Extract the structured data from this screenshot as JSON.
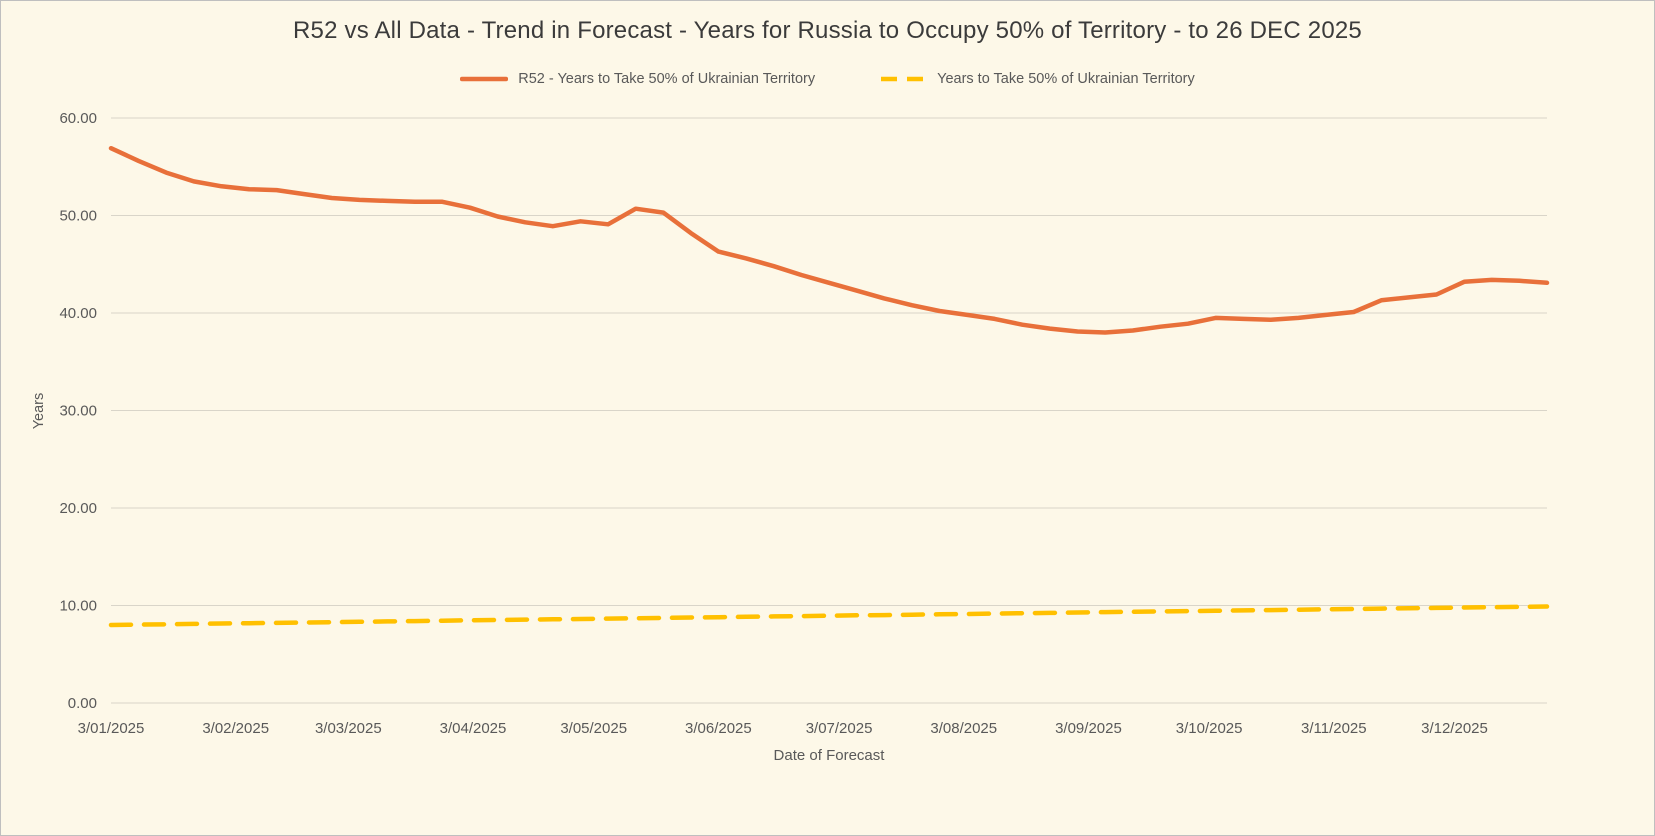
{
  "title": "R52 vs All Data  - Trend in Forecast - Years for Russia to Occupy 50% of Territory - to 26 DEC 2025",
  "colors": {
    "background": "#FDF8E8",
    "grid": "#D9D5C9",
    "axis_text": "#595959",
    "title_text": "#3B3B3B",
    "series_r52": "#E8703A",
    "series_alldata": "#FFC000",
    "border": "#BFBFBF"
  },
  "chart_data": {
    "type": "line",
    "title": "R52 vs All Data  - Trend in Forecast - Years for Russia to Occupy 50% of Territory - to 26 DEC 2025",
    "xlabel": "Date of Forecast",
    "ylabel": "Years",
    "ylim": [
      0,
      60
    ],
    "grid": "horizontal",
    "legend_position": "top",
    "y_ticks": [
      {
        "value": 0,
        "label": "0.00"
      },
      {
        "value": 10,
        "label": "10.00"
      },
      {
        "value": 20,
        "label": "20.00"
      },
      {
        "value": 30,
        "label": "30.00"
      },
      {
        "value": 40,
        "label": "40.00"
      },
      {
        "value": 50,
        "label": "50.00"
      },
      {
        "value": 60,
        "label": "60.00"
      }
    ],
    "x_span_days": 357,
    "x_ticks": [
      {
        "label": "3/01/2025",
        "day": 0
      },
      {
        "label": "3/02/2025",
        "day": 31
      },
      {
        "label": "3/03/2025",
        "day": 59
      },
      {
        "label": "3/04/2025",
        "day": 90
      },
      {
        "label": "3/05/2025",
        "day": 120
      },
      {
        "label": "3/06/2025",
        "day": 151
      },
      {
        "label": "3/07/2025",
        "day": 181
      },
      {
        "label": "3/08/2025",
        "day": 212
      },
      {
        "label": "3/09/2025",
        "day": 243
      },
      {
        "label": "3/10/2025",
        "day": 273
      },
      {
        "label": "3/11/2025",
        "day": 304
      },
      {
        "label": "3/12/2025",
        "day": 334
      }
    ],
    "series": [
      {
        "name": "R52 - Years to Take  50% of Ukrainian Territory",
        "color": "#E8703A",
        "dash": null,
        "values": [
          56.9,
          55.6,
          54.4,
          53.5,
          53.0,
          52.7,
          52.6,
          52.2,
          51.8,
          51.6,
          51.5,
          51.4,
          51.4,
          50.8,
          49.9,
          49.3,
          48.9,
          49.4,
          49.1,
          50.7,
          50.3,
          48.2,
          46.3,
          45.6,
          44.8,
          43.9,
          43.1,
          42.3,
          41.5,
          40.8,
          40.2,
          39.8,
          39.4,
          38.8,
          38.4,
          38.1,
          38.0,
          38.2,
          38.6,
          38.9,
          39.5,
          39.4,
          39.3,
          39.5,
          39.8,
          40.1,
          41.3,
          41.6,
          41.9,
          43.2,
          43.4,
          43.3,
          43.1
        ]
      },
      {
        "name": "Years to Take  50% of Ukrainian Territory",
        "color": "#FFC000",
        "dash": "20 13",
        "values": [
          8.0,
          8.04,
          8.07,
          8.11,
          8.15,
          8.18,
          8.22,
          8.26,
          8.29,
          8.33,
          8.37,
          8.4,
          8.44,
          8.48,
          8.51,
          8.55,
          8.58,
          8.62,
          8.66,
          8.69,
          8.73,
          8.77,
          8.8,
          8.84,
          8.88,
          8.91,
          8.95,
          8.99,
          9.02,
          9.06,
          9.1,
          9.13,
          9.17,
          9.21,
          9.24,
          9.28,
          9.32,
          9.35,
          9.39,
          9.43,
          9.46,
          9.5,
          9.53,
          9.57,
          9.61,
          9.64,
          9.68,
          9.72,
          9.75,
          9.79,
          9.83,
          9.86,
          9.9
        ]
      }
    ]
  }
}
